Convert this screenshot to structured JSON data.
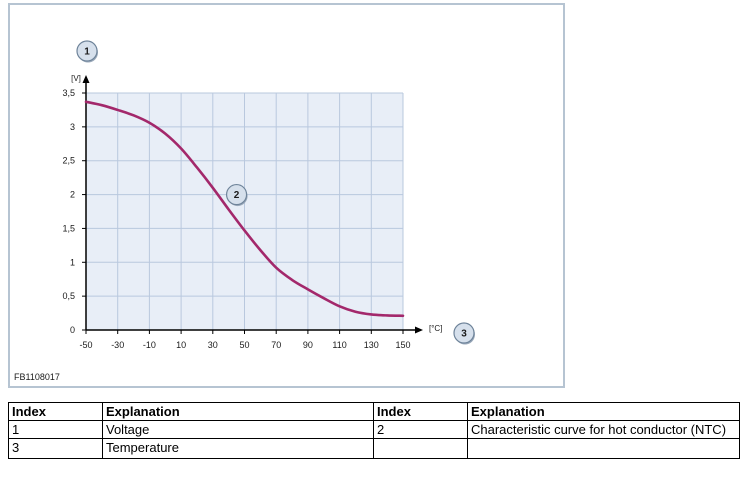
{
  "figure": {
    "code": "FB1108017"
  },
  "chart_data": {
    "type": "line",
    "title": "",
    "y_unit": "[V]",
    "x_unit": "[°C]",
    "x_ticks": [
      "-50",
      "-30",
      "-10",
      "10",
      "30",
      "50",
      "70",
      "90",
      "110",
      "130",
      "150"
    ],
    "y_ticks": [
      "0",
      "0,5",
      "1",
      "1,5",
      "2",
      "2,5",
      "3",
      "3,5"
    ],
    "xlim": [
      -50,
      150
    ],
    "ylim": [
      0,
      3.5
    ],
    "grid": true,
    "series": [
      {
        "color": "#a3286b",
        "x": [
          -50,
          -40,
          -30,
          -20,
          -10,
          0,
          10,
          20,
          30,
          40,
          50,
          60,
          70,
          80,
          90,
          100,
          110,
          120,
          130,
          140,
          150
        ],
        "y": [
          3.37,
          3.32,
          3.25,
          3.17,
          3.06,
          2.9,
          2.68,
          2.4,
          2.1,
          1.78,
          1.47,
          1.18,
          0.92,
          0.74,
          0.6,
          0.47,
          0.35,
          0.27,
          0.23,
          0.215,
          0.21
        ]
      }
    ],
    "callouts": [
      {
        "label": "1",
        "target": "y-axis"
      },
      {
        "label": "2",
        "target": "curve"
      },
      {
        "label": "3",
        "target": "x-axis"
      }
    ]
  },
  "table": {
    "headers": [
      "Index",
      "Explanation",
      "Index",
      "Explanation"
    ],
    "rows": [
      [
        "1",
        "Voltage",
        "2",
        "Characteristic curve for hot conductor (NTC)"
      ],
      [
        "3",
        "Temperature",
        "",
        ""
      ]
    ]
  },
  "colors": {
    "plot_bg": "#e8eef7",
    "grid": "#b9c8de",
    "curve": "#a3286b",
    "frame": "#b6c4d2",
    "callout_fill": "#d6e0ec",
    "callout_stroke": "#6f849a"
  }
}
